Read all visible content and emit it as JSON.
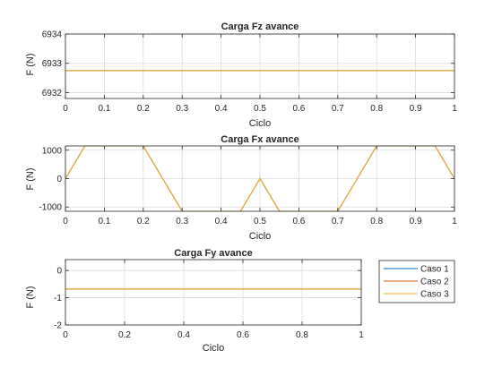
{
  "colors": {
    "axis": "#262626",
    "grid": "#dcdcdc",
    "background": "#ffffff"
  },
  "chart_data": [
    {
      "type": "line",
      "title": "Carga Fz avance",
      "xlabel": "Ciclo",
      "ylabel": "F (N)",
      "xlim": [
        0,
        1
      ],
      "ylim": [
        6931.8,
        6934
      ],
      "xticks": [
        0,
        0.1,
        0.2,
        0.3,
        0.4,
        0.5,
        0.6,
        0.7,
        0.8,
        0.9,
        1
      ],
      "xticklabels": [
        "0",
        "0.1",
        "0.2",
        "0.3",
        "0.4",
        "0.5",
        "0.6",
        "0.7",
        "0.8",
        "0.9",
        "1"
      ],
      "yticks": [
        6932,
        6933,
        6934
      ],
      "yticklabels": [
        "6932",
        "6933",
        "6934"
      ],
      "grid": true,
      "series": [
        {
          "color": "#0072BD",
          "x": [
            0,
            1
          ],
          "y": [
            6932.75,
            6932.75
          ]
        },
        {
          "color": "#D95319",
          "x": [
            0,
            1
          ],
          "y": [
            6932.75,
            6932.75
          ]
        },
        {
          "color": "#EDB120",
          "x": [
            0,
            1
          ],
          "y": [
            6932.75,
            6932.75
          ]
        }
      ]
    },
    {
      "type": "line",
      "title": "Carga Fx avance",
      "xlabel": "Ciclo",
      "ylabel": "F (N)",
      "xlim": [
        0,
        1
      ],
      "ylim": [
        -1150,
        1150
      ],
      "xticks": [
        0,
        0.1,
        0.2,
        0.3,
        0.4,
        0.5,
        0.6,
        0.7,
        0.8,
        0.9,
        1
      ],
      "xticklabels": [
        "0",
        "0.1",
        "0.2",
        "0.3",
        "0.4",
        "0.5",
        "0.6",
        "0.7",
        "0.8",
        "0.9",
        "1"
      ],
      "yticks": [
        -1000,
        0,
        1000
      ],
      "yticklabels": [
        "-1000",
        "0",
        "1000"
      ],
      "grid": true,
      "series": [
        {
          "color": "#0072BD",
          "x": [
            0,
            0.05,
            0.2,
            0.3,
            0.45,
            0.5,
            0.55,
            0.7,
            0.8,
            0.95,
            1
          ],
          "y": [
            0,
            1150,
            1150,
            -1150,
            -1150,
            0,
            -1150,
            -1150,
            1150,
            1150,
            0
          ]
        },
        {
          "color": "#D95319",
          "x": [
            0,
            0.05,
            0.2,
            0.3,
            0.45,
            0.5,
            0.55,
            0.7,
            0.8,
            0.95,
            1
          ],
          "y": [
            0,
            1150,
            1150,
            -1150,
            -1150,
            0,
            -1150,
            -1150,
            1150,
            1150,
            0
          ]
        },
        {
          "color": "#EDB120",
          "x": [
            0,
            0.05,
            0.2,
            0.3,
            0.45,
            0.5,
            0.55,
            0.7,
            0.8,
            0.95,
            1
          ],
          "y": [
            0,
            1150,
            1150,
            -1150,
            -1150,
            0,
            -1150,
            -1150,
            1150,
            1150,
            0
          ]
        }
      ]
    },
    {
      "type": "line",
      "title": "Carga Fy avance",
      "xlabel": "Ciclo",
      "ylabel": "F (N)",
      "xlim": [
        0,
        1
      ],
      "ylim": [
        -2,
        0.4
      ],
      "xticks": [
        0,
        0.2,
        0.4,
        0.6,
        0.8,
        1
      ],
      "xticklabels": [
        "0",
        "0.2",
        "0.4",
        "0.6",
        "0.8",
        "1"
      ],
      "yticks": [
        -2,
        -1,
        0
      ],
      "yticklabels": [
        "-2",
        "-1",
        "0"
      ],
      "grid": true,
      "legend": "right",
      "series": [
        {
          "name": "Caso 1",
          "color": "#0072BD",
          "x": [
            0,
            1
          ],
          "y": [
            -0.68,
            -0.68
          ]
        },
        {
          "name": "Caso 2",
          "color": "#D95319",
          "x": [
            0,
            1
          ],
          "y": [
            -0.68,
            -0.68
          ]
        },
        {
          "name": "Caso 3",
          "color": "#EDB120",
          "x": [
            0,
            1
          ],
          "y": [
            -0.68,
            -0.68
          ]
        }
      ]
    }
  ]
}
